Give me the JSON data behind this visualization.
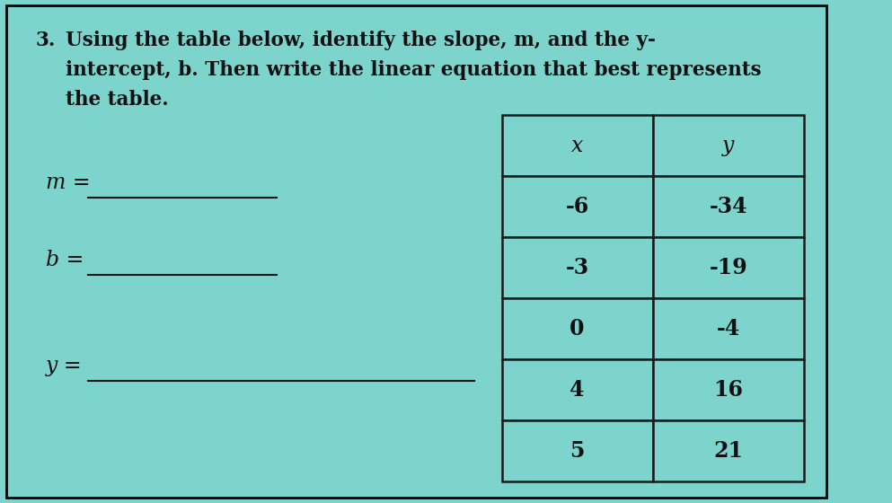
{
  "background_color": "#7dd4cc",
  "outer_border_color": "#000000",
  "title_number": "3.",
  "title_text_line1": "Using the table below, identify the slope, m, and the y-",
  "title_text_line2": "intercept, b. Then write the linear equation that best represents",
  "title_text_line3": "the table.",
  "label_m": "m = ",
  "label_b": "b = ",
  "label_y": "y = ",
  "table_headers": [
    "x",
    "y"
  ],
  "table_data": [
    [
      "-6",
      "-34"
    ],
    [
      "-3",
      "-19"
    ],
    [
      "0",
      "-4"
    ],
    [
      "4",
      "16"
    ],
    [
      "5",
      "21"
    ]
  ],
  "table_bg": "#7dd4cc",
  "table_border_color": "#1a1a1a",
  "text_color": "#111111",
  "font_size_title": 15.5,
  "font_size_table": 17,
  "font_size_labels": 17
}
